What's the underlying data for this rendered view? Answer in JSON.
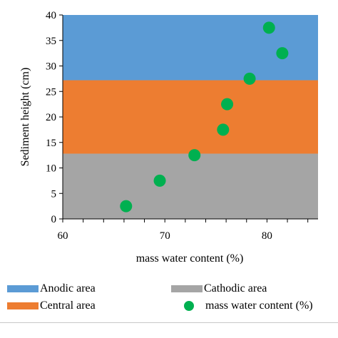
{
  "chart_data": {
    "type": "scatter",
    "xlabel": "mass water content (%)",
    "ylabel": "Sediment height (cm)",
    "xlim": [
      60,
      85
    ],
    "ylim": [
      0,
      40
    ],
    "x_ticks": [
      "60",
      "70",
      "80"
    ],
    "x_tick_values": [
      60,
      70,
      80
    ],
    "y_ticks": [
      "0",
      "5",
      "10",
      "15",
      "20",
      "25",
      "30",
      "35",
      "40"
    ],
    "y_tick_values": [
      0,
      5,
      10,
      15,
      20,
      25,
      30,
      35,
      40
    ],
    "bands": [
      {
        "name": "Cathodic area",
        "from": 0,
        "to": 12.8,
        "color": "#a5a5a5"
      },
      {
        "name": "Central area",
        "from": 12.8,
        "to": 27.2,
        "color": "#ed7d31"
      },
      {
        "name": "Anodic area",
        "from": 27.2,
        "to": 40,
        "color": "#5b9bd5"
      }
    ],
    "series": [
      {
        "name": "mass water content (%)",
        "color": "#00b050",
        "points": [
          {
            "x": 66.2,
            "y": 2.5
          },
          {
            "x": 69.5,
            "y": 7.5
          },
          {
            "x": 72.9,
            "y": 12.5
          },
          {
            "x": 75.7,
            "y": 17.5
          },
          {
            "x": 76.1,
            "y": 22.5
          },
          {
            "x": 78.3,
            "y": 27.5
          },
          {
            "x": 81.5,
            "y": 32.5
          },
          {
            "x": 80.2,
            "y": 37.5
          }
        ]
      }
    ],
    "legend": {
      "position": "bottom",
      "items": [
        "Anodic area",
        "Cathodic area",
        "Central area",
        "mass water content (%)"
      ]
    },
    "grid": false
  },
  "legend_labels": {
    "anodic": "Anodic area",
    "cathodic": "Cathodic area",
    "central": "Central area",
    "water": "mass water content (%)"
  }
}
